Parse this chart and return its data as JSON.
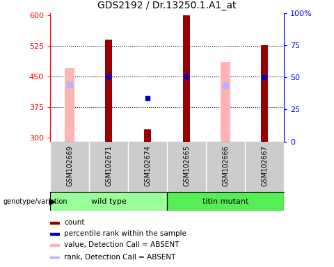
{
  "title": "GDS2192 / Dr.13250.1.A1_at",
  "samples": [
    "GSM102669",
    "GSM102671",
    "GSM102674",
    "GSM102665",
    "GSM102666",
    "GSM102667"
  ],
  "ylim_left": [
    290,
    605
  ],
  "ylim_right": [
    0,
    100
  ],
  "yticks_left": [
    300,
    375,
    450,
    525,
    600
  ],
  "yticks_right": [
    0,
    25,
    50,
    75,
    100
  ],
  "count_values": [
    null,
    540,
    320,
    600,
    null,
    527
  ],
  "percentile_rank": [
    null,
    449,
    397,
    449,
    null,
    448
  ],
  "absent_value": [
    470,
    null,
    null,
    null,
    486,
    null
  ],
  "absent_rank": [
    430,
    null,
    null,
    null,
    427,
    null
  ],
  "bar_bottom": 290,
  "count_color": "#990000",
  "percentile_color": "#0000cc",
  "absent_value_color": "#ffb3b3",
  "absent_rank_color": "#b3b3ff",
  "wt_color": "#99ff99",
  "tm_color": "#55ee55",
  "sample_bg_color": "#cccccc",
  "legend_items": [
    {
      "label": "count",
      "color": "#990000"
    },
    {
      "label": "percentile rank within the sample",
      "color": "#0000cc"
    },
    {
      "label": "value, Detection Call = ABSENT",
      "color": "#ffb3b3"
    },
    {
      "label": "rank, Detection Call = ABSENT",
      "color": "#b3b3ff"
    }
  ]
}
